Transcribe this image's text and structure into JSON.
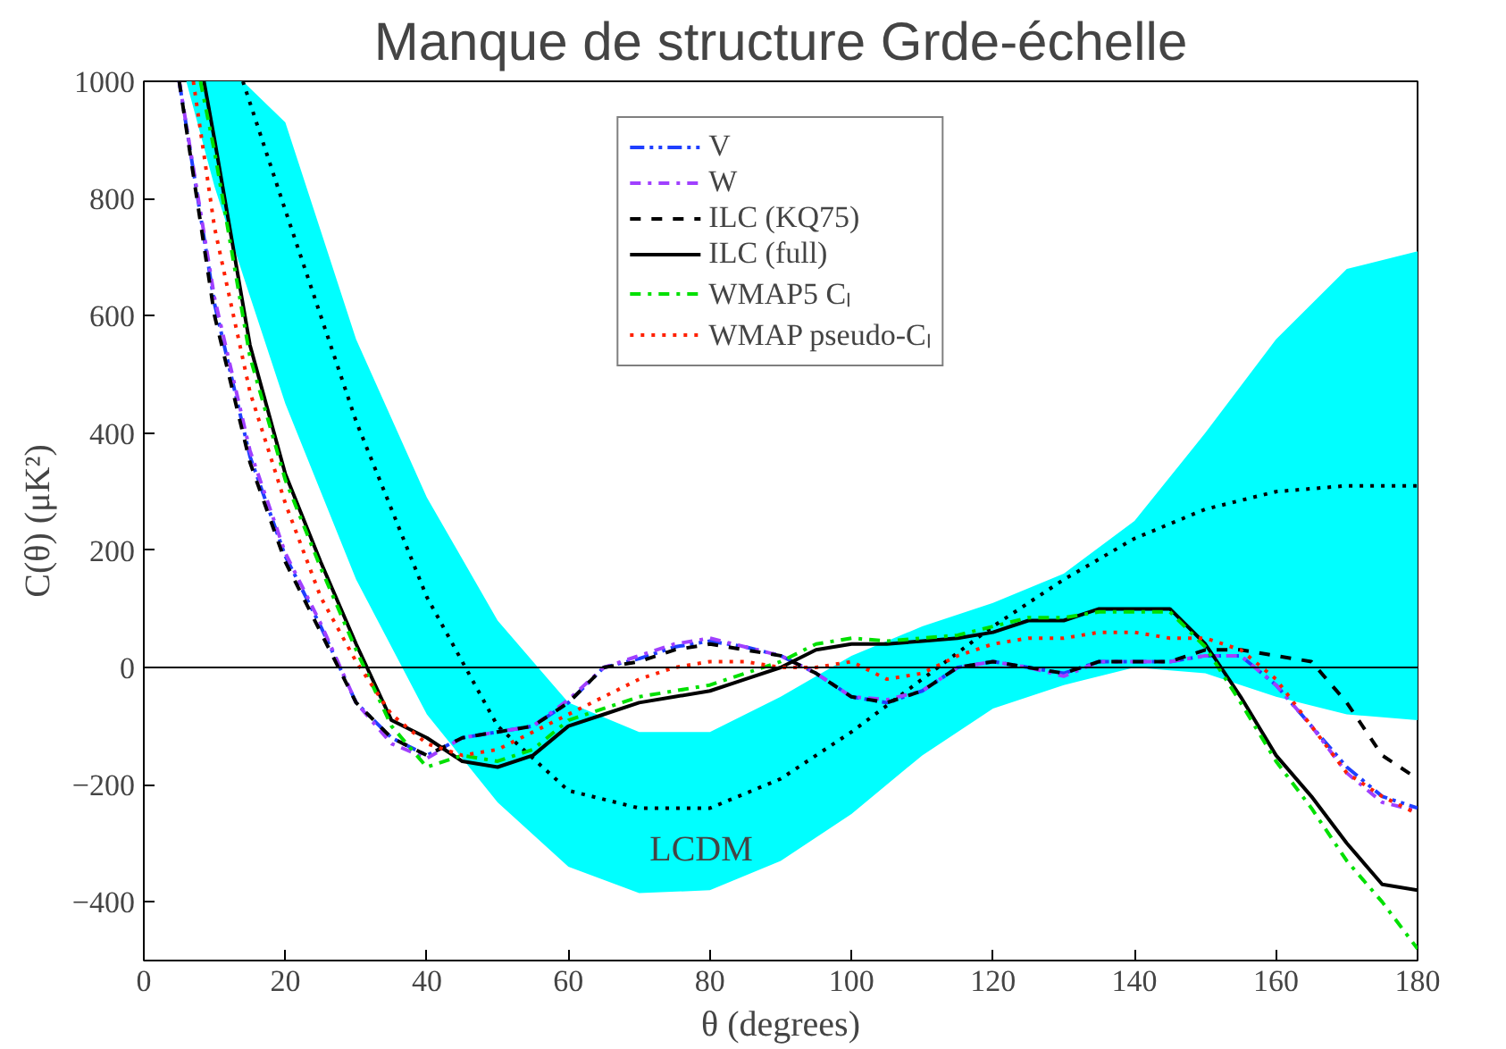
{
  "chart_data": {
    "type": "line",
    "title": "Manque de structure Grde-échelle",
    "xlabel": "θ (degrees)",
    "ylabel": "C(θ) (μK²)",
    "xlim": [
      0,
      180
    ],
    "ylim": [
      -500,
      1000
    ],
    "xticks": [
      0,
      20,
      40,
      60,
      80,
      100,
      120,
      140,
      160,
      180
    ],
    "yticks": [
      -400,
      -200,
      0,
      200,
      400,
      600,
      800,
      1000
    ],
    "grid": false,
    "legend": "top",
    "marker": "none",
    "ref_lines": [
      {
        "axis": "y",
        "value": 0,
        "color": "#000000"
      }
    ],
    "annotations": [
      "LCDM"
    ],
    "series": [
      {
        "color": "#000000",
        "line_style": "dotted",
        "x": [
          6,
          10,
          14,
          20,
          30,
          40,
          50,
          60,
          70,
          80,
          90,
          100,
          110,
          120,
          130,
          140,
          150,
          160,
          170,
          180
        ],
        "values": [
          null,
          null,
          1000,
          780,
          420,
          120,
          -100,
          -210,
          -240,
          -240,
          -190,
          -110,
          -20,
          70,
          150,
          220,
          270,
          300,
          310,
          310
        ],
        "lower": [
          1000,
          820,
          670,
          450,
          150,
          -80,
          -230,
          -340,
          -385,
          -380,
          -330,
          -250,
          -150,
          -70,
          -30,
          0,
          -10,
          -50,
          -80,
          -90
        ],
        "upper": [
          1000,
          1000,
          1000,
          930,
          560,
          290,
          80,
          -60,
          -110,
          -110,
          -50,
          20,
          70,
          110,
          160,
          250,
          400,
          560,
          680,
          710
        ]
      },
      {
        "name": "V",
        "color": "#1f3fff",
        "line_style": "dashdotdot",
        "x": [
          5,
          10,
          15,
          20,
          25,
          30,
          35,
          40,
          45,
          50,
          55,
          60,
          65,
          70,
          75,
          80,
          85,
          90,
          95,
          100,
          105,
          110,
          115,
          120,
          125,
          130,
          135,
          140,
          145,
          150,
          155,
          160,
          165,
          170,
          175,
          180
        ],
        "values": [
          1000,
          620,
          360,
          190,
          70,
          -60,
          -120,
          -150,
          -120,
          -110,
          -100,
          -60,
          0,
          15,
          35,
          45,
          35,
          20,
          -10,
          -50,
          -60,
          -40,
          0,
          10,
          0,
          -10,
          10,
          10,
          10,
          20,
          20,
          -30,
          -100,
          -170,
          -220,
          -240
        ]
      },
      {
        "name": "W",
        "color": "#a040ff",
        "line_style": "dashdot",
        "x": [
          5,
          10,
          15,
          20,
          25,
          30,
          35,
          40,
          45,
          50,
          55,
          60,
          65,
          70,
          75,
          80,
          85,
          90,
          95,
          100,
          105,
          110,
          115,
          120,
          125,
          130,
          135,
          140,
          145,
          150,
          155,
          160,
          165,
          170,
          175,
          180
        ],
        "values": [
          1000,
          630,
          370,
          195,
          75,
          -60,
          -130,
          -155,
          -120,
          -110,
          -100,
          -55,
          0,
          20,
          40,
          50,
          35,
          20,
          -10,
          -50,
          -55,
          -40,
          0,
          10,
          0,
          -15,
          10,
          10,
          10,
          20,
          20,
          -30,
          -100,
          -180,
          -230,
          -245
        ]
      },
      {
        "name": "ILC (KQ75)",
        "color": "#000000",
        "line_style": "dashed",
        "x": [
          5,
          10,
          15,
          20,
          25,
          30,
          35,
          40,
          45,
          50,
          55,
          60,
          65,
          70,
          75,
          80,
          85,
          90,
          95,
          100,
          105,
          110,
          115,
          120,
          125,
          130,
          135,
          140,
          145,
          150,
          155,
          160,
          165,
          170,
          175,
          180
        ],
        "values": [
          1000,
          600,
          350,
          180,
          60,
          -60,
          -120,
          -150,
          -120,
          -110,
          -100,
          -60,
          0,
          10,
          30,
          40,
          30,
          20,
          -10,
          -50,
          -60,
          -40,
          0,
          10,
          0,
          -10,
          10,
          10,
          10,
          30,
          30,
          20,
          10,
          -60,
          -150,
          -190
        ]
      },
      {
        "name": "ILC (full)",
        "color": "#000000",
        "line_style": "solid",
        "x": [
          8.5,
          10,
          15,
          20,
          25,
          30,
          35,
          40,
          45,
          50,
          55,
          60,
          65,
          70,
          75,
          80,
          85,
          90,
          95,
          100,
          105,
          110,
          115,
          120,
          125,
          130,
          135,
          140,
          145,
          150,
          155,
          160,
          165,
          170,
          175,
          180
        ],
        "values": [
          1000,
          900,
          550,
          330,
          180,
          40,
          -90,
          -120,
          -160,
          -170,
          -150,
          -100,
          -80,
          -60,
          -50,
          -40,
          -20,
          0,
          30,
          40,
          40,
          45,
          50,
          60,
          80,
          80,
          100,
          100,
          100,
          40,
          -50,
          -150,
          -220,
          -300,
          -370,
          -380
        ]
      },
      {
        "name": "WMAP5 Cₗ",
        "color": "#00e000",
        "line_style": "dashdot",
        "x": [
          8,
          10,
          15,
          20,
          25,
          30,
          35,
          40,
          45,
          50,
          55,
          60,
          65,
          70,
          75,
          80,
          85,
          90,
          95,
          100,
          105,
          110,
          115,
          120,
          125,
          130,
          135,
          140,
          145,
          150,
          155,
          160,
          165,
          170,
          175,
          180
        ],
        "values": [
          1000,
          880,
          530,
          320,
          170,
          30,
          -100,
          -170,
          -150,
          -160,
          -140,
          -90,
          -70,
          -50,
          -40,
          -30,
          -10,
          10,
          40,
          50,
          45,
          50,
          55,
          70,
          85,
          85,
          95,
          95,
          95,
          35,
          -60,
          -160,
          -240,
          -330,
          -400,
          -480
        ]
      },
      {
        "name": "WMAP pseudo-Cₗ",
        "color": "#ff2000",
        "line_style": "dotted",
        "x": [
          7,
          10,
          15,
          20,
          25,
          30,
          35,
          40,
          45,
          50,
          55,
          60,
          65,
          70,
          75,
          80,
          85,
          90,
          95,
          100,
          105,
          110,
          115,
          120,
          125,
          130,
          135,
          140,
          145,
          150,
          155,
          160,
          165,
          170,
          175,
          180
        ],
        "values": [
          1000,
          750,
          470,
          280,
          120,
          10,
          -80,
          -130,
          -150,
          -140,
          -110,
          -80,
          -50,
          -20,
          0,
          10,
          10,
          0,
          0,
          10,
          -20,
          -10,
          20,
          40,
          50,
          50,
          60,
          60,
          50,
          50,
          30,
          -20,
          -100,
          -180,
          -220,
          -250
        ]
      }
    ]
  }
}
